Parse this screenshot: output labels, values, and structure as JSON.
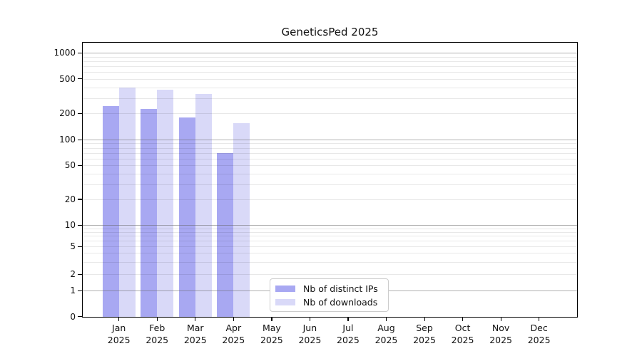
{
  "chart_data": {
    "type": "bar",
    "title": "GeneticsPed 2025",
    "categories": [
      "Jan",
      "Feb",
      "Mar",
      "Apr",
      "May",
      "Jun",
      "Jul",
      "Aug",
      "Sep",
      "Oct",
      "Nov",
      "Dec"
    ],
    "category_year": "2025",
    "series": [
      {
        "name": "Nb of distinct IPs",
        "color": "#a8a8f2",
        "values": [
          245,
          225,
          180,
          70,
          null,
          null,
          null,
          null,
          null,
          null,
          null,
          null
        ]
      },
      {
        "name": "Nb of downloads",
        "color": "#d9d9f8",
        "values": [
          400,
          375,
          335,
          155,
          null,
          null,
          null,
          null,
          null,
          null,
          null,
          null
        ]
      }
    ],
    "xlabel": "",
    "ylabel": "",
    "yscale": "symlog",
    "y_ticks": [
      0,
      1,
      2,
      5,
      10,
      20,
      50,
      100,
      200,
      500,
      1000
    ],
    "ylim": [
      0,
      1330
    ],
    "grid": "horizontal major and log-minor gridlines, drawn over bars",
    "legend_position": "inside plot, lower center-left",
    "colors": {
      "distinct_ips_bar": "#a8a8f2",
      "downloads_bar": "#d9d9f8",
      "grid_major": "#9c9c9c",
      "grid_minor": "#e9e9e9",
      "axis": "#000000",
      "background": "#ffffff"
    }
  }
}
